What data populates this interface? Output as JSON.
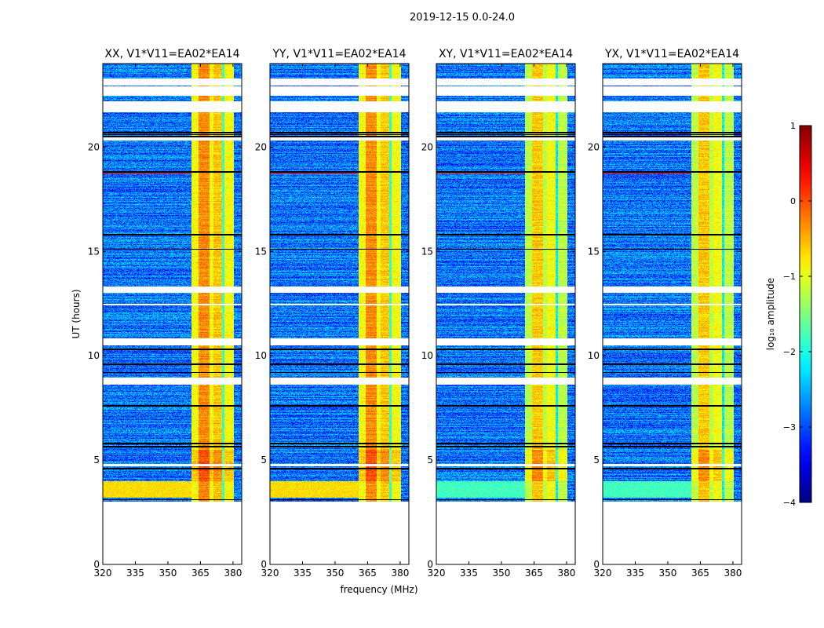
{
  "chart_data": {
    "type": "heatmap",
    "title": "2019-12-15 0.0-24.0",
    "xlabel": "frequency (MHz)",
    "ylabel": "UT (hours)",
    "xlim": [
      320,
      384
    ],
    "ylim": [
      0,
      24
    ],
    "xticks": [
      "320",
      "335",
      "350",
      "365",
      "380"
    ],
    "xtick_values": [
      320,
      335,
      350,
      365,
      380
    ],
    "yticks": [
      "0",
      "5",
      "10",
      "15",
      "20"
    ],
    "ytick_values": [
      0,
      5,
      10,
      15,
      20
    ],
    "panels": [
      {
        "title": "XX, V1*V11=EA02*EA14",
        "cross": false
      },
      {
        "title": "YY, V1*V11=EA02*EA14",
        "cross": false
      },
      {
        "title": "XY, V1*V11=EA02*EA14",
        "cross": true
      },
      {
        "title": "YX, V1*V11=EA02*EA14",
        "cross": true
      }
    ],
    "data_start_hour": 3.0,
    "flagged_hours": [
      [
        22.95,
        23.3
      ],
      [
        22.45,
        22.9
      ],
      [
        21.65,
        22.2
      ],
      [
        20.3,
        20.45
      ],
      [
        13.0,
        13.3
      ],
      [
        12.4,
        12.5
      ],
      [
        10.5,
        10.85
      ],
      [
        8.6,
        8.95
      ],
      [
        4.7,
        4.8
      ]
    ],
    "dropout_hours": [
      20.5,
      20.6,
      20.7,
      18.8,
      15.8,
      15.1,
      10.3,
      9.6,
      9.2,
      7.6,
      5.8,
      5.65,
      4.6,
      3.1
    ],
    "colorbar": {
      "label": "log₁₀ amplitude",
      "colormap": "jet",
      "range": [
        -4,
        1
      ],
      "ticks": [
        "1",
        "0",
        "−1",
        "−2",
        "−3",
        "−4"
      ],
      "tick_values": [
        1,
        0,
        -1,
        -2,
        -3,
        -4
      ]
    }
  }
}
